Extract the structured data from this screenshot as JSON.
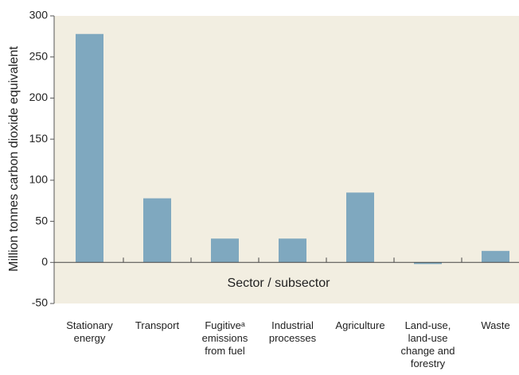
{
  "chart_data": {
    "type": "bar",
    "x_label": "Sector / subsector",
    "y_label": "Million tonnes carbon dioxide equivalent",
    "categories": [
      "Stationary energy",
      "Transport",
      "Fugitiveᵃ emissions from fuel",
      "Industrial processes",
      "Agriculture",
      "Land-use, land-use change and forestry",
      "Waste"
    ],
    "values": [
      278,
      78,
      29,
      29,
      85,
      -2,
      14
    ],
    "color": "#7fa8bf",
    "ylim": [
      -50,
      300
    ],
    "yticks": [
      -50,
      0,
      50,
      100,
      150,
      200,
      250,
      300
    ]
  }
}
